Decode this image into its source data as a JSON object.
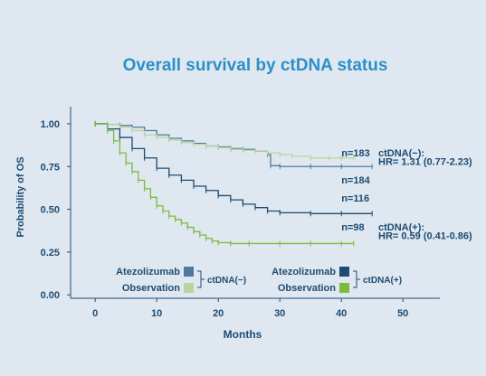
{
  "chart_data": {
    "type": "line",
    "title": "Overall survival by ctDNA status",
    "xlabel": "Months",
    "ylabel": "Probability of OS",
    "xlim": [
      -4,
      56
    ],
    "ylim": [
      -0.02,
      1.1
    ],
    "x_ticks": [
      "0",
      "10",
      "20",
      "30",
      "40",
      "50"
    ],
    "y_ticks": [
      "0.00",
      "0.25",
      "0.50",
      "0.75",
      "1.00"
    ],
    "grid": false,
    "series": [
      {
        "name": "Atezolizumab ctDNA(−)",
        "color": "#4f7a9f",
        "x": [
          0,
          2,
          4,
          6,
          8,
          10,
          12,
          14,
          16,
          18,
          20,
          22,
          24,
          26,
          28,
          28.5,
          30,
          35,
          40,
          45
        ],
        "y": [
          1.0,
          0.995,
          0.99,
          0.98,
          0.96,
          0.935,
          0.915,
          0.9,
          0.885,
          0.87,
          0.865,
          0.855,
          0.85,
          0.84,
          0.82,
          0.755,
          0.75,
          0.75,
          0.75,
          0.75
        ]
      },
      {
        "name": "Observation ctDNA(−)",
        "color": "#b8d59b",
        "x": [
          0,
          2,
          4,
          6,
          8,
          10,
          12,
          14,
          16,
          18,
          20,
          22,
          24,
          26,
          28,
          30,
          32,
          35,
          38,
          40,
          42
        ],
        "y": [
          1.0,
          0.995,
          0.98,
          0.96,
          0.935,
          0.92,
          0.905,
          0.89,
          0.88,
          0.87,
          0.86,
          0.85,
          0.845,
          0.84,
          0.83,
          0.82,
          0.81,
          0.8,
          0.8,
          0.8,
          0.8
        ]
      },
      {
        "name": "Atezolizumab ctDNA(+)",
        "color": "#1d4b73",
        "x": [
          0,
          2,
          4,
          6,
          8,
          10,
          12,
          14,
          16,
          18,
          20,
          22,
          24,
          26,
          28,
          30,
          35,
          40,
          45
        ],
        "y": [
          1.0,
          0.97,
          0.92,
          0.855,
          0.8,
          0.74,
          0.7,
          0.67,
          0.635,
          0.61,
          0.58,
          0.555,
          0.53,
          0.51,
          0.49,
          0.48,
          0.475,
          0.475,
          0.475
        ]
      },
      {
        "name": "Observation ctDNA(+)",
        "color": "#7cbb3c",
        "x": [
          0,
          2,
          3,
          4,
          5,
          6,
          7,
          8,
          9,
          10,
          11,
          12,
          13,
          14,
          15,
          16,
          17,
          18,
          19,
          20,
          22,
          25,
          30,
          35,
          40,
          42
        ],
        "y": [
          1.0,
          0.96,
          0.9,
          0.83,
          0.77,
          0.72,
          0.67,
          0.62,
          0.57,
          0.52,
          0.49,
          0.46,
          0.44,
          0.42,
          0.395,
          0.37,
          0.35,
          0.33,
          0.315,
          0.305,
          0.3,
          0.3,
          0.3,
          0.3,
          0.3,
          0.3
        ]
      }
    ],
    "annotations": [
      {
        "text": "n=183",
        "x": 40,
        "y": 0.81
      },
      {
        "text": "n=184",
        "x": 40,
        "y": 0.65
      },
      {
        "text": "n=116",
        "x": 40,
        "y": 0.545
      },
      {
        "text": "n=98",
        "x": 40,
        "y": 0.375
      },
      {
        "text": "ctDNA(−):",
        "x": 46,
        "y": 0.81
      },
      {
        "text": "HR= 1.31 (0.77-2.23)",
        "x": 46,
        "y": 0.76
      },
      {
        "text": "ctDNA(+):",
        "x": 46,
        "y": 0.375
      },
      {
        "text": "HR= 0.59 (0.41-0.86)",
        "x": 46,
        "y": 0.325
      }
    ],
    "legend": {
      "placement": "bottom",
      "groups": [
        {
          "label": "ctDNA(−)",
          "items": [
            {
              "text": "Atezolizumab",
              "color": "#4f7a9f"
            },
            {
              "text": "Observation",
              "color": "#b8d59b"
            }
          ]
        },
        {
          "label": "ctDNA(+)",
          "items": [
            {
              "text": "Atezolizumab",
              "color": "#1d4b73"
            },
            {
              "text": "Observation",
              "color": "#7cbb3c"
            }
          ]
        }
      ]
    }
  }
}
